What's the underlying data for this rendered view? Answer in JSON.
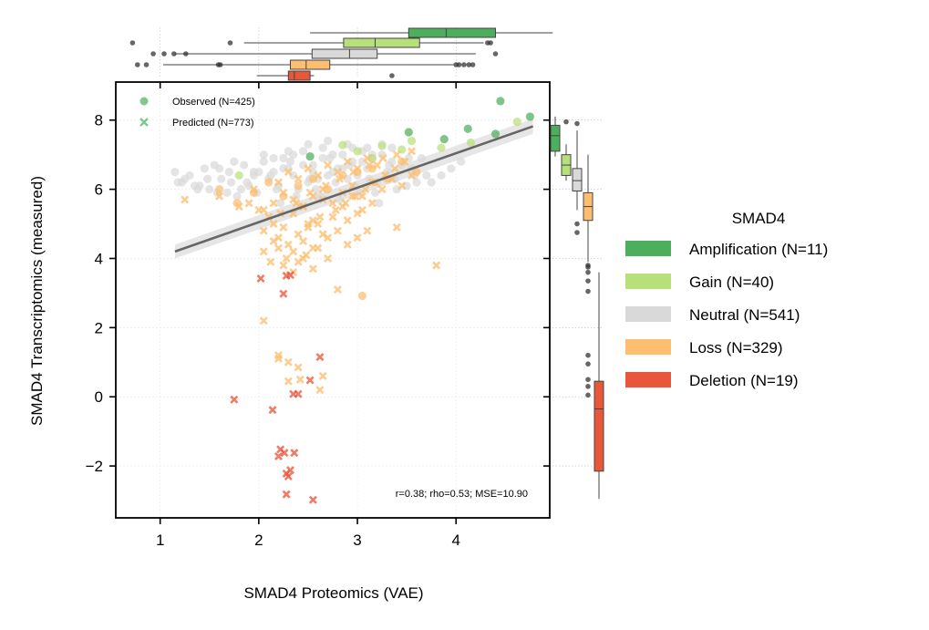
{
  "chart_data": {
    "type": "scatter",
    "xlabel": "SMAD4 Proteomics (VAE)",
    "ylabel": "SMAD4 Transcriptomics (measured)",
    "xlim": [
      0.55,
      4.95
    ],
    "ylim": [
      -3.5,
      9.1
    ],
    "xticks": [
      1,
      2,
      3,
      4
    ],
    "yticks": [
      -2,
      0,
      2,
      4,
      6,
      8
    ],
    "grid": true,
    "stats_text": "r=0.38; rho=0.53; MSE=10.90",
    "inner_legend": [
      {
        "marker": "circle",
        "label": "Observed (N=425)"
      },
      {
        "marker": "x",
        "label": "Predicted (N=773)"
      }
    ],
    "legend": {
      "title": "SMAD4",
      "placement": "right",
      "entries": [
        {
          "key": "amp",
          "label": "Amplification (N=11)",
          "color": "#4daf5b"
        },
        {
          "key": "gain",
          "label": "Gain (N=40)",
          "color": "#b8e07a"
        },
        {
          "key": "neutral",
          "label": "Neutral (N=541)",
          "color": "#d9d9d9"
        },
        {
          "key": "loss",
          "label": "Loss (N=329)",
          "color": "#fdbe6f"
        },
        {
          "key": "del",
          "label": "Deletion (N=19)",
          "color": "#e9573b"
        }
      ]
    },
    "regression": {
      "x0": 1.15,
      "y0": 4.2,
      "x1": 4.78,
      "y1": 7.82,
      "ci_x0": 0.2,
      "ci_x1": 0.22
    },
    "box_x": [
      {
        "key": "amp",
        "whisker_low": 2.52,
        "q1": 3.52,
        "median": 3.9,
        "q3": 4.4,
        "whisker_high": 4.98,
        "outliers": []
      },
      {
        "key": "gain",
        "whisker_low": 1.85,
        "q1": 2.86,
        "median": 3.18,
        "q3": 3.63,
        "whisker_high": 4.28,
        "outliers": [
          0.72,
          1.71,
          4.32,
          4.35
        ]
      },
      {
        "key": "neutral",
        "whisker_low": 1.15,
        "q1": 2.54,
        "median": 2.92,
        "q3": 3.2,
        "whisker_high": 4.2,
        "outliers": [
          0.93,
          1.04,
          1.14,
          1.26,
          4.4
        ]
      },
      {
        "key": "loss",
        "whisker_low": 1.03,
        "q1": 2.32,
        "median": 2.48,
        "q3": 2.72,
        "whisker_high": 3.98,
        "outliers": [
          0.77,
          0.86,
          1.59,
          1.61,
          4.0,
          4.03,
          4.08,
          4.13,
          4.17
        ]
      },
      {
        "key": "del",
        "whisker_low": 1.98,
        "q1": 2.3,
        "median": 2.36,
        "q3": 2.52,
        "whisker_high": 2.56,
        "outliers": [
          3.35
        ]
      }
    ],
    "box_y": [
      {
        "key": "amp",
        "whisker_low": 6.95,
        "q1": 7.1,
        "median": 7.55,
        "q3": 7.85,
        "whisker_high": 8.1,
        "outliers": []
      },
      {
        "key": "gain",
        "whisker_low": 6.25,
        "q1": 6.4,
        "median": 6.7,
        "q3": 7.0,
        "whisker_high": 7.3,
        "outliers": [
          7.95
        ]
      },
      {
        "key": "neutral",
        "whisker_low": 5.4,
        "q1": 5.95,
        "median": 6.25,
        "q3": 6.6,
        "whisker_high": 7.7,
        "outliers": [
          5.0,
          4.75,
          7.9
        ]
      },
      {
        "key": "loss",
        "whisker_low": 3.9,
        "q1": 5.1,
        "median": 5.5,
        "q3": 5.9,
        "whisker_high": 7.0,
        "outliers": [
          3.8,
          3.6,
          3.35,
          3.05,
          1.2,
          0.95,
          0.5,
          0.3,
          0.05,
          3.75
        ]
      },
      {
        "key": "del",
        "whisker_low": -2.95,
        "q1": -2.15,
        "median": -0.35,
        "q3": 0.45,
        "whisker_high": 3.6,
        "outliers": []
      }
    ],
    "series": [
      {
        "key": "neutral",
        "marker": "circle",
        "x": [
          1.15,
          1.22,
          1.35,
          1.48,
          1.6,
          1.72,
          1.85,
          1.95,
          2.05,
          2.15,
          2.25,
          2.35,
          2.45,
          2.55,
          2.65,
          2.75,
          2.85,
          2.95,
          3.05,
          3.15,
          3.25,
          3.35,
          3.45,
          3.55,
          3.65,
          3.7,
          1.3,
          1.5,
          1.7,
          1.9,
          2.1,
          2.3,
          2.5,
          2.7,
          2.9,
          3.1,
          3.3,
          3.5,
          3.6,
          2.0,
          2.2,
          2.4,
          2.6,
          2.8,
          3.0,
          3.2,
          3.4,
          1.45,
          1.62,
          1.78,
          1.98,
          2.18,
          2.38,
          2.58,
          2.78,
          2.98,
          3.18,
          3.38,
          3.58,
          2.05,
          2.25,
          2.45,
          2.65,
          2.85,
          3.05,
          3.25,
          1.4,
          1.68,
          1.88,
          2.12,
          2.32,
          2.52,
          2.72,
          2.92,
          3.12,
          3.32,
          3.52,
          1.25,
          1.55,
          1.75,
          1.95,
          2.15,
          2.35,
          2.55,
          2.75,
          2.95,
          3.15,
          3.35,
          3.55,
          2.62,
          2.82,
          3.02,
          3.22,
          2.42,
          2.22,
          1.82,
          1.58,
          1.38,
          1.18,
          3.75,
          3.85,
          3.95,
          4.05,
          2.7,
          2.9,
          3.1,
          2.5,
          2.3
        ],
        "y": [
          6.5,
          6.2,
          6.1,
          6.3,
          6.6,
          6.2,
          6.7,
          6.5,
          6.8,
          6.9,
          6.6,
          6.4,
          6.7,
          6.5,
          6.9,
          7.0,
          6.6,
          6.8,
          7.1,
          6.9,
          7.0,
          6.8,
          6.7,
          6.6,
          6.9,
          6.4,
          6.4,
          6.0,
          6.5,
          6.1,
          6.3,
          6.6,
          6.2,
          6.4,
          6.3,
          6.6,
          6.5,
          6.1,
          6.2,
          6.5,
          6.1,
          6.0,
          6.3,
          6.6,
          6.4,
          6.2,
          6.0,
          6.6,
          6.3,
          5.8,
          5.9,
          6.0,
          5.8,
          6.0,
          6.2,
          6.1,
          5.9,
          6.3,
          6.4,
          7.0,
          6.9,
          7.1,
          7.2,
          7.0,
          6.8,
          7.3,
          6.1,
          5.9,
          6.2,
          6.4,
          6.8,
          6.3,
          6.9,
          6.7,
          6.3,
          6.7,
          6.9,
          6.3,
          6.7,
          6.8,
          6.4,
          6.5,
          7.0,
          6.7,
          6.5,
          7.2,
          7.0,
          7.2,
          6.6,
          5.8,
          5.7,
          5.9,
          5.6,
          5.5,
          5.6,
          6.0,
          5.9,
          6.0,
          6.2,
          6.2,
          6.4,
          6.6,
          6.8,
          7.4,
          7.3,
          7.2,
          7.3,
          7.1
        ]
      },
      {
        "key": "gain",
        "marker": "circle",
        "x": [
          2.85,
          3.0,
          3.25,
          3.55,
          3.85,
          4.15,
          4.62,
          1.8,
          3.15,
          3.45
        ],
        "y": [
          7.28,
          7.1,
          7.25,
          7.4,
          7.2,
          7.35,
          7.95,
          6.4,
          6.9,
          7.15
        ]
      },
      {
        "key": "amp",
        "marker": "circle",
        "x": [
          3.52,
          3.88,
          4.12,
          4.4,
          4.45,
          4.75,
          2.52
        ],
        "y": [
          7.65,
          7.45,
          7.75,
          7.6,
          8.55,
          8.1,
          6.95
        ]
      },
      {
        "key": "loss",
        "marker": "circle",
        "x": [
          1.6,
          1.78,
          1.95,
          2.1,
          2.25,
          2.4,
          2.55,
          2.7,
          2.85,
          3.0,
          3.15,
          3.3,
          3.45,
          3.6,
          3.05
        ],
        "y": [
          6.0,
          5.6,
          5.9,
          6.2,
          5.8,
          6.1,
          6.3,
          6.0,
          6.4,
          6.5,
          6.6,
          6.3,
          6.8,
          6.5,
          2.92
        ]
      },
      {
        "key": "loss",
        "marker": "x",
        "x": [
          1.25,
          1.6,
          1.8,
          1.95,
          2.05,
          2.15,
          2.25,
          2.35,
          2.45,
          2.55,
          2.65,
          2.75,
          2.85,
          2.95,
          3.05,
          3.15,
          3.25,
          3.35,
          3.45,
          3.55,
          2.2,
          2.3,
          2.4,
          2.5,
          2.6,
          2.7,
          2.8,
          2.9,
          3.0,
          3.1,
          3.2,
          2.1,
          2.0,
          1.9,
          2.35,
          2.45,
          2.55,
          2.65,
          2.75,
          2.85,
          2.95,
          3.05,
          3.15,
          2.25,
          2.15,
          2.05,
          2.4,
          2.5,
          2.6,
          2.7,
          2.8,
          2.9,
          3.0,
          2.3,
          2.2,
          2.35,
          2.45,
          2.55,
          2.65,
          2.28,
          2.4,
          2.48,
          2.6,
          2.7,
          2.9,
          3.0,
          3.1,
          2.15,
          2.25,
          2.35,
          2.45,
          2.55,
          2.05,
          2.12,
          2.2,
          2.5,
          2.62,
          2.78,
          2.88,
          2.98,
          3.08,
          3.18,
          3.28,
          3.38,
          3.48,
          2.22,
          2.38,
          2.52,
          2.68,
          2.82,
          2.96,
          3.12,
          3.26,
          3.4,
          3.55,
          3.8,
          3.4,
          2.8,
          2.05,
          2.2,
          2.3,
          2.42,
          2.62,
          2.3,
          2.4,
          2.2,
          2.65
        ],
        "y": [
          5.7,
          5.8,
          5.5,
          6.0,
          5.4,
          5.6,
          5.9,
          5.7,
          5.5,
          5.8,
          6.0,
          5.6,
          5.9,
          6.1,
          5.8,
          6.2,
          6.0,
          6.3,
          6.1,
          6.4,
          6.2,
          6.5,
          6.3,
          6.6,
          6.4,
          6.7,
          6.5,
          6.8,
          6.6,
          6.9,
          6.7,
          5.2,
          5.4,
          5.6,
          5.3,
          5.5,
          5.1,
          5.7,
          5.2,
          5.5,
          5.8,
          5.4,
          5.6,
          4.9,
          5.0,
          4.8,
          4.7,
          4.9,
          5.0,
          4.6,
          4.8,
          5.1,
          5.3,
          4.4,
          4.6,
          4.2,
          4.5,
          4.3,
          4.7,
          4.0,
          3.9,
          4.1,
          4.3,
          4.0,
          4.4,
          4.6,
          4.8,
          4.5,
          3.8,
          3.6,
          4.0,
          3.7,
          4.2,
          3.9,
          4.3,
          5.0,
          5.2,
          5.4,
          5.6,
          5.8,
          6.0,
          6.2,
          6.4,
          6.6,
          6.8,
          5.3,
          5.6,
          5.9,
          6.1,
          6.3,
          6.5,
          6.7,
          6.9,
          7.0,
          7.1,
          3.8,
          4.9,
          3.1,
          2.2,
          1.2,
          1.0,
          0.5,
          0.2,
          0.45,
          0.85,
          1.1,
          0.6
        ]
      },
      {
        "key": "del",
        "marker": "x",
        "x": [
          2.02,
          2.28,
          2.32,
          2.25,
          2.62,
          2.52,
          1.75,
          2.14,
          2.35,
          2.4,
          2.22,
          2.26,
          2.2,
          2.36,
          2.32,
          2.28,
          2.3,
          2.55,
          2.28
        ],
        "y": [
          3.42,
          3.5,
          3.52,
          2.98,
          1.15,
          0.48,
          -0.08,
          -0.38,
          0.08,
          0.08,
          -1.52,
          -1.62,
          -1.72,
          -1.62,
          -2.12,
          -2.22,
          -2.3,
          -2.98,
          -2.82
        ]
      }
    ]
  }
}
